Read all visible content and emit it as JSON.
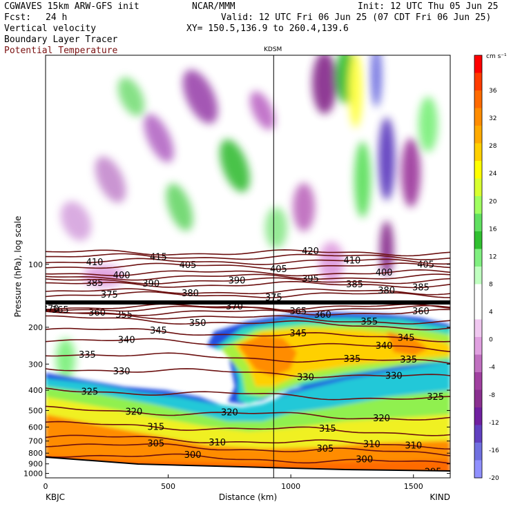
{
  "header": {
    "model": "CGWAVES 15km ARW-GFS init",
    "forecast_label": "Fcst:",
    "forecast_value": "24 h",
    "org": "NCAR/MMM",
    "init": "Init: 12 UTC Thu 05 Jun 25",
    "valid": "Valid: 12 UTC Fri 06 Jun 25 (07 CDT Fri 06 Jun 25)",
    "xy": "XY= 150.5,136.9 to 260.4,139.6",
    "fields": [
      "Vertical velocity",
      "Boundary Layer Tracer"
    ],
    "field_red": "Potential Temperature",
    "station_mid": "KDSM"
  },
  "colors": {
    "theta_line": "#6b0f0f",
    "background": "#ffffff"
  },
  "chart_data": {
    "type": "cross-section",
    "xlabel": "Distance (km)",
    "ylabel": "Pressure (hPa), log scale",
    "x_ticks": [
      0,
      500,
      1000,
      1500
    ],
    "xlim": [
      0,
      1650
    ],
    "y_ticks": [
      100,
      200,
      300,
      400,
      500,
      600,
      700,
      800,
      900,
      1000
    ],
    "ylim": [
      1050,
      10
    ],
    "y_scale": "log",
    "left_endpoint": "KBJC",
    "right_endpoint": "KIND",
    "vertical_marker_km": 930,
    "colorbar": {
      "unit": "cm s⁻¹",
      "labels": [
        36,
        32,
        28,
        24,
        20,
        16,
        12,
        8,
        4,
        0,
        -4,
        -8,
        -12,
        -16,
        -20
      ],
      "colors": [
        "#ff0000",
        "#ff3b00",
        "#ff6a00",
        "#ff8c00",
        "#ffaa00",
        "#ffd000",
        "#ffff00",
        "#d8ff30",
        "#a0ff60",
        "#60e060",
        "#30c030",
        "#80f080",
        "#c0ffc0",
        "#ffffff",
        "#ffffff",
        "#f0c8f0",
        "#e0a0e0",
        "#c070c0",
        "#a040a0",
        "#8a3090",
        "#7020a0",
        "#6040c0",
        "#7070e0",
        "#9090ff"
      ]
    },
    "theta_isentropes": [
      {
        "value": 295,
        "pressure_hPa": 960,
        "label_positions_km": [
          400,
          1580
        ]
      },
      {
        "value": 300,
        "pressure_hPa": 850,
        "label_positions_km": [
          600,
          1300
        ]
      },
      {
        "value": 305,
        "pressure_hPa": 760,
        "label_positions_km": [
          450,
          1140
        ]
      },
      {
        "value": 310,
        "pressure_hPa": 700,
        "label_positions_km": [
          700,
          1330,
          1500
        ]
      },
      {
        "value": 315,
        "pressure_hPa": 610,
        "label_positions_km": [
          450,
          1150
        ]
      },
      {
        "value": 320,
        "pressure_hPa": 520,
        "label_positions_km": [
          360,
          750,
          1370
        ]
      },
      {
        "value": 325,
        "pressure_hPa": 420,
        "label_positions_km": [
          180,
          1590
        ]
      },
      {
        "value": 330,
        "pressure_hPa": 330,
        "label_positions_km": [
          310,
          1060,
          1420
        ]
      },
      {
        "value": 335,
        "pressure_hPa": 280,
        "label_positions_km": [
          170,
          1250,
          1480
        ]
      },
      {
        "value": 340,
        "pressure_hPa": 240,
        "label_positions_km": [
          330,
          1380
        ]
      },
      {
        "value": 345,
        "pressure_hPa": 215,
        "label_positions_km": [
          460,
          1030,
          1470
        ]
      },
      {
        "value": 350,
        "pressure_hPa": 190,
        "label_positions_km": [
          620
        ]
      },
      {
        "value": 355,
        "pressure_hPa": 180,
        "label_positions_km": [
          320,
          1320
        ]
      },
      {
        "value": 360,
        "pressure_hPa": 170,
        "label_positions_km": [
          210,
          1130,
          1530
        ]
      },
      {
        "value": 365,
        "pressure_hPa": 163,
        "label_positions_km": [
          60,
          1030
        ]
      },
      {
        "value": 370,
        "pressure_hPa": 160,
        "label_positions_km": [
          20,
          770
        ]
      },
      {
        "value": 375,
        "pressure_hPa": 140,
        "label_positions_km": [
          260,
          930
        ]
      },
      {
        "value": 380,
        "pressure_hPa": 135,
        "label_positions_km": [
          590,
          1390
        ]
      },
      {
        "value": 385,
        "pressure_hPa": 125,
        "label_positions_km": [
          200,
          1260,
          1530
        ]
      },
      {
        "value": 390,
        "pressure_hPa": 120,
        "label_positions_km": [
          430,
          780
        ]
      },
      {
        "value": 395,
        "pressure_hPa": 115,
        "label_positions_km": [
          1080
        ]
      },
      {
        "value": 400,
        "pressure_hPa": 110,
        "label_positions_km": [
          310,
          1380
        ]
      },
      {
        "value": 405,
        "pressure_hPa": 102,
        "label_positions_km": [
          580,
          950,
          1550
        ]
      },
      {
        "value": 410,
        "pressure_hPa": 97,
        "label_positions_km": [
          200,
          1250
        ]
      },
      {
        "value": 415,
        "pressure_hPa": 92,
        "label_positions_km": [
          460
        ]
      },
      {
        "value": 420,
        "pressure_hPa": 88,
        "label_positions_km": [
          1080
        ]
      }
    ]
  }
}
